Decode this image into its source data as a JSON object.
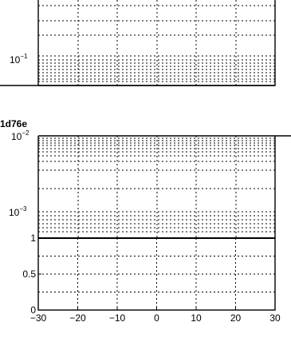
{
  "chart_data": [
    {
      "type": "line",
      "title": "",
      "xlabel": "",
      "ylabel": "",
      "yscale": "log",
      "grid": true,
      "ytick_labels": [
        {
          "base": "10",
          "exp": "−1"
        }
      ],
      "series": []
    },
    {
      "type": "line",
      "title": "1d76e",
      "xlabel": "",
      "ylabel": "",
      "yscale": "log",
      "grid": true,
      "ytick_labels": [
        {
          "base": "10",
          "exp": "−3"
        }
      ],
      "series": []
    },
    {
      "type": "line",
      "title": "",
      "xlabel": "",
      "ylabel": "",
      "xlim": [
        -30,
        30
      ],
      "ylim": [
        0,
        1
      ],
      "xticks": [
        -30,
        -20,
        -10,
        0,
        10,
        20,
        30
      ],
      "yticks": [
        0,
        0.5,
        1
      ],
      "xtick_labels": [
        "−30",
        "−20",
        "−10",
        "0",
        "10",
        "20",
        "30"
      ],
      "ytick_labels": [
        "0",
        "0.5",
        "1"
      ],
      "grid": true,
      "series": [
        {
          "x": [
            -30,
            30
          ],
          "y": [
            1,
            1
          ]
        }
      ]
    }
  ]
}
